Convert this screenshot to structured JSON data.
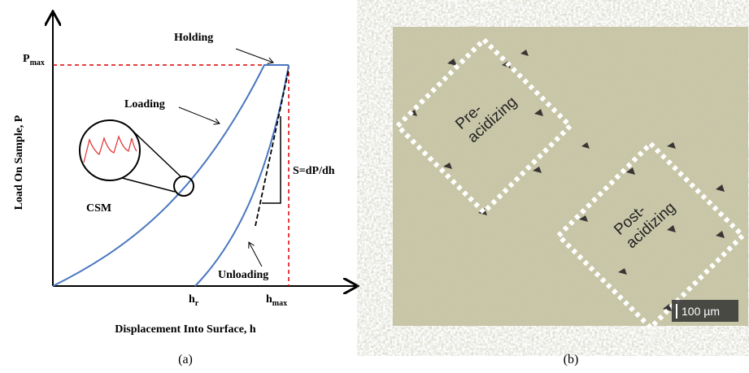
{
  "panel_a": {
    "pmax": {
      "main": "P",
      "sub": "max"
    },
    "holding": "Holding",
    "loading": "Loading",
    "csm": "CSM",
    "stiffness": "S=dP/dh",
    "unloading": "Unloading",
    "hr": {
      "main": "h",
      "sub": "r"
    },
    "hmax": {
      "main": "h",
      "sub": "max"
    },
    "y_axis_label": "Load On Sample, P",
    "x_axis_label": "Displacement Into Surface, h",
    "caption": "(a)"
  },
  "panel_b": {
    "pre": [
      "Pre-",
      "acidizing"
    ],
    "post": [
      "Post-",
      "acidizing"
    ],
    "scale_bar": "100 µm",
    "caption": "(b)"
  }
}
